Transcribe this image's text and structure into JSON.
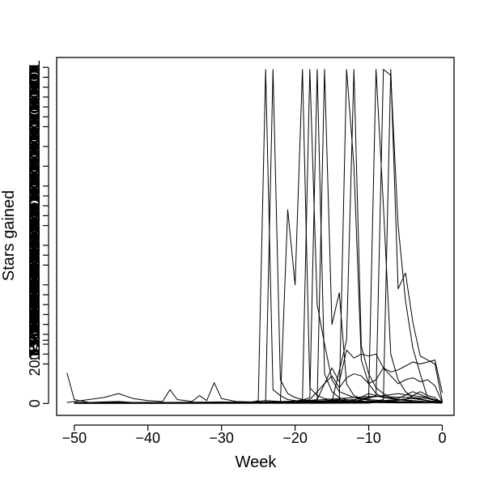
{
  "chart_data": {
    "type": "line",
    "title": "",
    "xlabel": "Week",
    "ylabel": "Stars gained",
    "xlim": [
      -52.4,
      1.6
    ],
    "ylim": [
      -60,
      1750
    ],
    "x_ticks": [
      -50,
      -40,
      -30,
      -20,
      -10,
      0
    ],
    "x_tick_labels": [
      "−50",
      "−40",
      "−30",
      "−20",
      "−10",
      "0"
    ],
    "y_ticks": [
      0,
      200
    ],
    "y_tick_labels": [
      "0",
      "200"
    ],
    "y_overlap_tick_values": [
      250,
      300,
      320,
      350,
      400,
      450,
      500,
      550,
      600,
      700,
      750,
      800,
      900,
      950,
      1000,
      1050,
      1100,
      1200,
      1300,
      1400,
      1450,
      1500,
      1550,
      1600,
      1650,
      1700
    ],
    "y_overlap_labels": [
      "2000000000000000001",
      "2000000000000000011",
      "4000000000000001000",
      "5000000000100000000",
      "1000000000000000000",
      "1500000000000000000"
    ],
    "grid": false,
    "legend": "none",
    "line_color": "#000000",
    "series": [
      {
        "x": [
          -51,
          -50,
          -48,
          -46,
          -44,
          -42,
          -40,
          -38,
          -36,
          -34,
          -32,
          -30,
          -28,
          -26,
          -24,
          -22,
          -20,
          -18,
          -16,
          -14,
          -12,
          -10,
          -8,
          -6,
          -4,
          -2,
          0
        ],
        "values": [
          155,
          20,
          5,
          8,
          10,
          5,
          6,
          4,
          5,
          3,
          4,
          4,
          5,
          6,
          8,
          10,
          12,
          15,
          20,
          25,
          30,
          35,
          35,
          32,
          30,
          25,
          5
        ]
      },
      {
        "x": [
          -51,
          -46,
          -44,
          -42,
          -40,
          -38,
          -37,
          -36,
          -34,
          -33,
          -32,
          -31,
          -30,
          -28,
          -26,
          -24,
          -22,
          -20,
          -18,
          -16,
          -14,
          -12,
          -10,
          -8,
          -6,
          -4,
          -2,
          0
        ],
        "values": [
          5,
          30,
          50,
          25,
          15,
          10,
          70,
          20,
          10,
          40,
          15,
          105,
          25,
          10,
          8,
          15,
          10,
          5,
          8,
          10,
          15,
          20,
          30,
          40,
          50,
          40,
          30,
          10
        ]
      },
      {
        "x": [
          -50,
          -45,
          -40,
          -35,
          -30,
          -26,
          -25,
          -24,
          -23,
          -22,
          -21,
          -20,
          -18,
          -16,
          -14,
          -12,
          -10,
          -8,
          -6,
          -4,
          -2,
          0
        ],
        "values": [
          5,
          6,
          5,
          6,
          8,
          5,
          15,
          1690,
          70,
          40,
          20,
          15,
          10,
          8,
          8,
          6,
          5,
          4,
          3,
          3,
          3,
          5
        ]
      },
      {
        "x": [
          -50,
          -40,
          -30,
          -24,
          -23,
          -22,
          -21,
          -20,
          -19,
          -18,
          -16,
          -14,
          -12,
          -10,
          -8,
          -6,
          -4,
          -2,
          0
        ],
        "values": [
          4,
          5,
          6,
          8,
          1690,
          120,
          50,
          30,
          20,
          15,
          10,
          10,
          8,
          6,
          5,
          5,
          4,
          4,
          3
        ]
      },
      {
        "x": [
          -50,
          -40,
          -30,
          -22,
          -21,
          -20,
          -19,
          -18,
          -17,
          -16,
          -14,
          -12,
          -10,
          -8,
          -6,
          -4,
          -2,
          0
        ],
        "values": [
          3,
          4,
          5,
          6,
          980,
          600,
          1690,
          80,
          40,
          25,
          15,
          10,
          8,
          6,
          5,
          5,
          4,
          3
        ]
      },
      {
        "x": [
          -50,
          -40,
          -30,
          -22,
          -20,
          -19,
          -18,
          -17,
          -16,
          -15,
          -14,
          -12,
          -10,
          -8,
          -6,
          -4,
          -2,
          0
        ],
        "values": [
          2,
          3,
          4,
          5,
          10,
          20,
          1690,
          500,
          300,
          120,
          60,
          30,
          20,
          15,
          10,
          8,
          5,
          3
        ]
      },
      {
        "x": [
          -50,
          -40,
          -30,
          -20,
          -18,
          -17,
          -16,
          -15,
          -14,
          -13,
          -12,
          -10,
          -8,
          -6,
          -4,
          -2,
          0
        ],
        "values": [
          2,
          2,
          3,
          5,
          30,
          1690,
          150,
          60,
          30,
          20,
          15,
          10,
          8,
          6,
          5,
          4,
          3
        ]
      },
      {
        "x": [
          -50,
          -40,
          -30,
          -20,
          -17,
          -16,
          -15,
          -14,
          -13,
          -12,
          -11,
          -10,
          -8,
          -6,
          -4,
          -2,
          0
        ],
        "values": [
          2,
          2,
          3,
          4,
          10,
          1690,
          400,
          560,
          100,
          40,
          25,
          15,
          10,
          8,
          6,
          4,
          2
        ]
      },
      {
        "x": [
          -50,
          -40,
          -30,
          -20,
          -14,
          -13,
          -12,
          -11,
          -10,
          -9,
          -8,
          -6,
          -4,
          -2,
          0
        ],
        "values": [
          2,
          2,
          3,
          4,
          20,
          1690,
          1200,
          220,
          100,
          50,
          30,
          20,
          15,
          10,
          5
        ]
      },
      {
        "x": [
          -50,
          -40,
          -30,
          -20,
          -15,
          -13,
          -12,
          -11,
          -10,
          -9,
          -8,
          -7,
          -6,
          -4,
          -2,
          0
        ],
        "values": [
          2,
          2,
          2,
          3,
          10,
          320,
          1690,
          290,
          150,
          80,
          50,
          30,
          20,
          10,
          5,
          3
        ]
      },
      {
        "x": [
          -50,
          -40,
          -30,
          -20,
          -12,
          -10,
          -9,
          -8,
          -7,
          -6,
          -5,
          -4,
          -2,
          0
        ],
        "values": [
          2,
          2,
          2,
          3,
          10,
          30,
          1690,
          1000,
          250,
          120,
          60,
          30,
          15,
          5
        ]
      },
      {
        "x": [
          -50,
          -40,
          -30,
          -20,
          -12,
          -10,
          -9,
          -8,
          -7,
          -6,
          -5,
          -4,
          -3,
          -2,
          0
        ],
        "values": [
          2,
          2,
          2,
          3,
          8,
          25,
          40,
          1690,
          1660,
          900,
          520,
          280,
          150,
          30,
          8
        ]
      },
      {
        "x": [
          -50,
          -40,
          -30,
          -20,
          -10,
          -8,
          -7,
          -6,
          -5,
          -4,
          -3,
          -2,
          -1,
          0
        ],
        "values": [
          2,
          2,
          2,
          2,
          5,
          20,
          1690,
          580,
          660,
          410,
          240,
          220,
          200,
          10
        ]
      },
      {
        "x": [
          -50,
          -40,
          -30,
          -20,
          -17,
          -16,
          -15,
          -14,
          -13,
          -12,
          -11,
          -10,
          -9,
          -8,
          -7,
          -6,
          -5,
          -4,
          -3,
          -2,
          -1,
          0
        ],
        "values": [
          3,
          4,
          4,
          5,
          20,
          100,
          180,
          110,
          270,
          230,
          250,
          240,
          250,
          180,
          160,
          170,
          190,
          210,
          200,
          210,
          220,
          55
        ]
      },
      {
        "x": [
          -50,
          -40,
          -30,
          -20,
          -18,
          -17,
          -16,
          -15,
          -14,
          -13,
          -12,
          -11,
          -10,
          -9,
          -8,
          -7,
          -6,
          -5,
          -4,
          -3,
          -2,
          -1,
          0
        ],
        "values": [
          2,
          2,
          3,
          4,
          20,
          60,
          100,
          140,
          80,
          130,
          150,
          140,
          100,
          120,
          180,
          140,
          100,
          120,
          130,
          110,
          120,
          90,
          5
        ]
      },
      {
        "x": [
          -50,
          -40,
          -30,
          -20,
          -18,
          -16,
          -14,
          -12,
          -10,
          -8,
          -6,
          -4,
          -2,
          0
        ],
        "values": [
          1,
          1,
          2,
          2,
          5,
          10,
          20,
          15,
          50,
          30,
          25,
          60,
          30,
          2
        ]
      },
      {
        "x": [
          -50,
          -40,
          -30,
          -20,
          -15,
          -12,
          -10,
          -8,
          -6,
          -4,
          -2,
          0
        ],
        "values": [
          1,
          1,
          1,
          2,
          3,
          5,
          10,
          15,
          20,
          25,
          15,
          2
        ]
      },
      {
        "x": [
          -50,
          -40,
          -30,
          -20,
          -10,
          -5,
          -3,
          -2,
          -1,
          0
        ],
        "values": [
          1,
          1,
          1,
          1,
          2,
          20,
          60,
          40,
          30,
          2
        ]
      }
    ]
  }
}
